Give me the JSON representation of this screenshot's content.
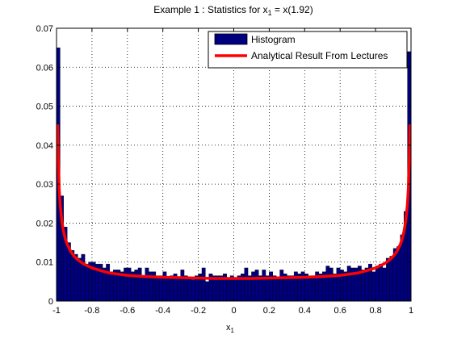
{
  "chart_data": {
    "type": "bar",
    "title": "Example 1 : Statistics for x",
    "title_sub": "1",
    "title_tail": " = x(1.92)",
    "xlabel": "x",
    "xlabel_sub": "1",
    "ylabel": "",
    "xlim": [
      -1,
      1
    ],
    "ylim": [
      0,
      0.07
    ],
    "xticks": [
      -1,
      -0.8,
      -0.6,
      -0.4,
      -0.2,
      0,
      0.2,
      0.4,
      0.6,
      0.8,
      1
    ],
    "xtick_labels": [
      "-1",
      "-0.8",
      "-0.6",
      "-0.4",
      "-0.2",
      "0",
      "0.2",
      "0.4",
      "0.6",
      "0.8",
      "1"
    ],
    "yticks": [
      0,
      0.01,
      0.02,
      0.03,
      0.04,
      0.05,
      0.06,
      0.07
    ],
    "ytick_labels": [
      "0",
      "0.01",
      "0.02",
      "0.03",
      "0.04",
      "0.05",
      "0.06",
      "0.07"
    ],
    "grid": true,
    "legend_position": "top-right",
    "series": [
      {
        "name": "Histogram",
        "type": "bar",
        "color": "#00007f",
        "bin_width": 0.02,
        "x": [
          -0.99,
          -0.97,
          -0.95,
          -0.93,
          -0.91,
          -0.89,
          -0.87,
          -0.85,
          -0.83,
          -0.81,
          -0.79,
          -0.77,
          -0.75,
          -0.73,
          -0.71,
          -0.69,
          -0.67,
          -0.65,
          -0.63,
          -0.61,
          -0.59,
          -0.57,
          -0.55,
          -0.53,
          -0.51,
          -0.49,
          -0.47,
          -0.45,
          -0.43,
          -0.41,
          -0.39,
          -0.37,
          -0.35,
          -0.33,
          -0.31,
          -0.29,
          -0.27,
          -0.25,
          -0.23,
          -0.21,
          -0.19,
          -0.17,
          -0.15,
          -0.13,
          -0.11,
          -0.09,
          -0.07,
          -0.05,
          -0.03,
          -0.01,
          0.01,
          0.03,
          0.05,
          0.07,
          0.09,
          0.11,
          0.13,
          0.15,
          0.17,
          0.19,
          0.21,
          0.23,
          0.25,
          0.27,
          0.29,
          0.31,
          0.33,
          0.35,
          0.37,
          0.39,
          0.41,
          0.43,
          0.45,
          0.47,
          0.49,
          0.51,
          0.53,
          0.55,
          0.57,
          0.59,
          0.61,
          0.63,
          0.65,
          0.67,
          0.69,
          0.71,
          0.73,
          0.75,
          0.77,
          0.79,
          0.81,
          0.83,
          0.85,
          0.87,
          0.89,
          0.91,
          0.93,
          0.95,
          0.97,
          0.99
        ],
        "values": [
          0.065,
          0.027,
          0.019,
          0.015,
          0.013,
          0.012,
          0.011,
          0.012,
          0.0095,
          0.01,
          0.01,
          0.0095,
          0.0095,
          0.0085,
          0.0095,
          0.0075,
          0.008,
          0.008,
          0.0075,
          0.0085,
          0.0085,
          0.0075,
          0.008,
          0.0085,
          0.0065,
          0.0085,
          0.0075,
          0.0075,
          0.0065,
          0.0065,
          0.0075,
          0.006,
          0.0065,
          0.007,
          0.006,
          0.008,
          0.0065,
          0.006,
          0.0055,
          0.0065,
          0.007,
          0.0085,
          0.005,
          0.007,
          0.0065,
          0.0065,
          0.0065,
          0.007,
          0.006,
          0.0065,
          0.006,
          0.0065,
          0.007,
          0.0085,
          0.0065,
          0.0075,
          0.008,
          0.0065,
          0.008,
          0.0065,
          0.0075,
          0.0065,
          0.006,
          0.008,
          0.007,
          0.0065,
          0.0065,
          0.0075,
          0.007,
          0.0075,
          0.007,
          0.0065,
          0.0065,
          0.0075,
          0.007,
          0.0075,
          0.009,
          0.0085,
          0.007,
          0.0085,
          0.008,
          0.0075,
          0.009,
          0.0085,
          0.0085,
          0.009,
          0.008,
          0.0085,
          0.0095,
          0.0075,
          0.009,
          0.0095,
          0.0085,
          0.011,
          0.0115,
          0.0135,
          0.014,
          0.017,
          0.023,
          0.064
        ]
      },
      {
        "name": "Analytical Result From Lectures",
        "type": "line",
        "color": "#ff0000",
        "x": [
          -0.994,
          -0.99,
          -0.985,
          -0.98,
          -0.97,
          -0.96,
          -0.95,
          -0.94,
          -0.92,
          -0.9,
          -0.88,
          -0.85,
          -0.8,
          -0.75,
          -0.7,
          -0.65,
          -0.6,
          -0.5,
          -0.4,
          -0.3,
          -0.2,
          -0.1,
          0,
          0.1,
          0.2,
          0.3,
          0.4,
          0.5,
          0.6,
          0.65,
          0.7,
          0.75,
          0.8,
          0.85,
          0.88,
          0.9,
          0.92,
          0.94,
          0.95,
          0.96,
          0.97,
          0.98,
          0.985,
          0.99,
          0.994
        ],
        "values": [
          0.045,
          0.036,
          0.029,
          0.025,
          0.0205,
          0.0178,
          0.0159,
          0.0146,
          0.0127,
          0.0115,
          0.0106,
          0.0096,
          0.0085,
          0.0078,
          0.0072,
          0.0069,
          0.0066,
          0.0063,
          0.0061,
          0.006,
          0.0059,
          0.0058,
          0.0058,
          0.0058,
          0.0059,
          0.006,
          0.0061,
          0.0063,
          0.0066,
          0.0069,
          0.0072,
          0.0078,
          0.0085,
          0.0096,
          0.0106,
          0.0115,
          0.0127,
          0.0146,
          0.0159,
          0.0178,
          0.0205,
          0.025,
          0.029,
          0.036,
          0.045
        ]
      }
    ]
  }
}
